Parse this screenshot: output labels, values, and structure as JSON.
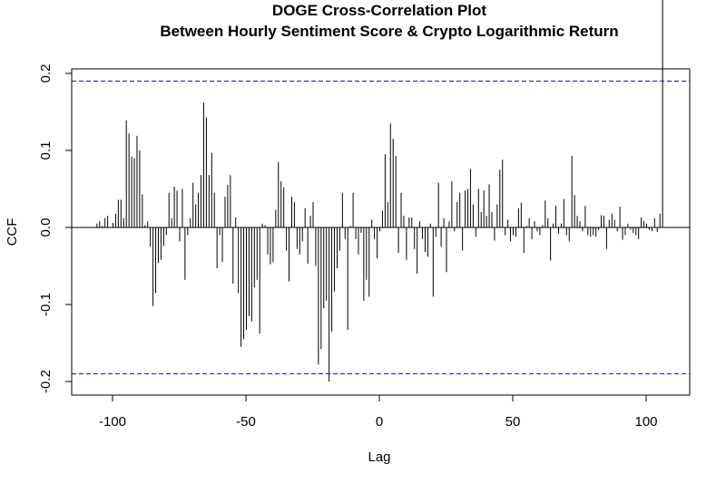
{
  "chart_data": {
    "type": "bar",
    "title": "DOGE Cross-Correlation Plot",
    "subtitle": "Between Hourly Sentiment Score & Crypto Logarithmic Return",
    "xlabel": "Lag",
    "ylabel": "CCF",
    "xlim": [
      -116,
      116
    ],
    "ylim": [
      -0.2,
      0.2
    ],
    "x_ticks": [
      -100,
      -50,
      0,
      50,
      100
    ],
    "x_tick_labels": [
      "-100",
      "-50",
      "0",
      "50",
      "100"
    ],
    "y_ticks": [
      -0.2,
      -0.1,
      0.0,
      0.1,
      0.2
    ],
    "y_tick_labels": [
      "-0.2",
      "-0.1",
      "0.0",
      "0.1",
      "0.2"
    ],
    "confidence_bound": 0.19,
    "lags": [
      -106,
      -105,
      -104,
      -103,
      -102,
      -101,
      -100,
      -99,
      -98,
      -97,
      -96,
      -95,
      -94,
      -93,
      -92,
      -91,
      -90,
      -89,
      -88,
      -87,
      -86,
      -85,
      -84,
      -83,
      -82,
      -81,
      -80,
      -79,
      -78,
      -77,
      -76,
      -75,
      -74,
      -73,
      -72,
      -71,
      -70,
      -69,
      -68,
      -67,
      -66,
      -65,
      -64,
      -63,
      -62,
      -61,
      -60,
      -59,
      -58,
      -57,
      -56,
      -55,
      -54,
      -53,
      -52,
      -51,
      -50,
      -49,
      -48,
      -47,
      -46,
      -45,
      -44,
      -43,
      -42,
      -41,
      -40,
      -39,
      -38,
      -37,
      -36,
      -35,
      -34,
      -33,
      -32,
      -31,
      -30,
      -29,
      -28,
      -27,
      -26,
      -25,
      -24,
      -23,
      -22,
      -21,
      -20,
      -19,
      -18,
      -17,
      -16,
      -15,
      -14,
      -13,
      -12,
      -11,
      -10,
      -9,
      -8,
      -7,
      -6,
      -5,
      -4,
      -3,
      -2,
      -1,
      0,
      1,
      2,
      3,
      4,
      5,
      6,
      7,
      8,
      9,
      10,
      11,
      12,
      13,
      14,
      15,
      16,
      17,
      18,
      19,
      20,
      21,
      22,
      23,
      24,
      25,
      26,
      27,
      28,
      29,
      30,
      31,
      32,
      33,
      34,
      35,
      36,
      37,
      38,
      39,
      40,
      41,
      42,
      43,
      44,
      45,
      46,
      47,
      48,
      49,
      50,
      51,
      52,
      53,
      54,
      55,
      56,
      57,
      58,
      59,
      60,
      61,
      62,
      63,
      64,
      65,
      66,
      67,
      68,
      69,
      70,
      71,
      72,
      73,
      74,
      75,
      76,
      77,
      78,
      79,
      80,
      81,
      82,
      83,
      84,
      85,
      86,
      87,
      88,
      89,
      90,
      91,
      92,
      93,
      94,
      95,
      96,
      97,
      98,
      99,
      100,
      101,
      102,
      103,
      104,
      105,
      106
    ],
    "values": [
      0.005,
      0.008,
      0.002,
      0.012,
      0.015,
      0,
      0.006,
      0.018,
      0.036,
      0.036,
      0.012,
      0.139,
      0.122,
      0.092,
      0.09,
      0.119,
      0.1,
      0.043,
      0.003,
      0.008,
      -0.025,
      -0.102,
      -0.085,
      -0.046,
      -0.042,
      -0.024,
      -0.01,
      0.045,
      0.012,
      0.053,
      0.048,
      -0.018,
      0.05,
      -0.068,
      -0.01,
      0.012,
      0.058,
      0.03,
      0.045,
      0.068,
      0.162,
      0.143,
      0.068,
      0.097,
      0.045,
      -0.053,
      -0.01,
      -0.045,
      0.04,
      0.055,
      0.068,
      -0.073,
      0.013,
      -0.085,
      -0.155,
      -0.145,
      -0.133,
      -0.115,
      -0.122,
      -0.078,
      -0.068,
      -0.138,
      0.005,
      0.003,
      -0.035,
      -0.048,
      -0.045,
      0.023,
      0.085,
      0.06,
      0.052,
      -0.03,
      -0.07,
      0.04,
      0.033,
      -0.028,
      -0.035,
      -0.018,
      0.025,
      -0.047,
      0.015,
      0.033,
      -0.05,
      -0.178,
      -0.158,
      -0.105,
      -0.095,
      -0.2,
      -0.135,
      -0.083,
      -0.053,
      -0.03,
      0.045,
      -0.015,
      -0.133,
      0.002,
      0.045,
      -0.015,
      -0.035,
      -0.007,
      -0.095,
      -0.068,
      -0.09,
      0.01,
      -0.015,
      -0.04,
      -0.005,
      0.022,
      0.095,
      0.033,
      0.135,
      0.115,
      0.093,
      -0.033,
      0.045,
      0.015,
      -0.042,
      0.013,
      0.013,
      -0.028,
      -0.06,
      0.008,
      -0.015,
      -0.032,
      -0.038,
      0.005,
      -0.09,
      -0.012,
      0.058,
      -0.025,
      0.012,
      -0.058,
      0.008,
      0.06,
      -0.005,
      0.033,
      0.045,
      -0.03,
      0.048,
      0.05,
      0.076,
      0.03,
      -0.012,
      0.05,
      0.02,
      0.048,
      0.015,
      0.056,
      0.02,
      -0.017,
      0.03,
      0.075,
      0.088,
      -0.01,
      0.01,
      -0.018,
      -0.01,
      -0.012,
      0.025,
      0.032,
      -0.033,
      0.002,
      0.012,
      -0.015,
      0.008,
      -0.005,
      -0.01,
      0.003,
      0.035,
      0.012,
      -0.043,
      0.005,
      0.028,
      -0.008,
      0.005,
      0.037,
      -0.01,
      -0.018,
      0.093,
      0.042,
      0.015,
      0.008,
      -0.005,
      0.028,
      -0.01,
      -0.012,
      -0.01,
      -0.012,
      -0.003,
      0.016,
      0.015,
      -0.028,
      0.01,
      0.018,
      0.01,
      -0.005,
      0.027,
      -0.016,
      -0.01,
      0.005,
      -0.003,
      -0.007,
      -0.01,
      -0.015,
      0.013,
      0.008,
      0.005,
      -0.003,
      -0.005,
      0.012,
      -0.006,
      0.018
    ]
  }
}
